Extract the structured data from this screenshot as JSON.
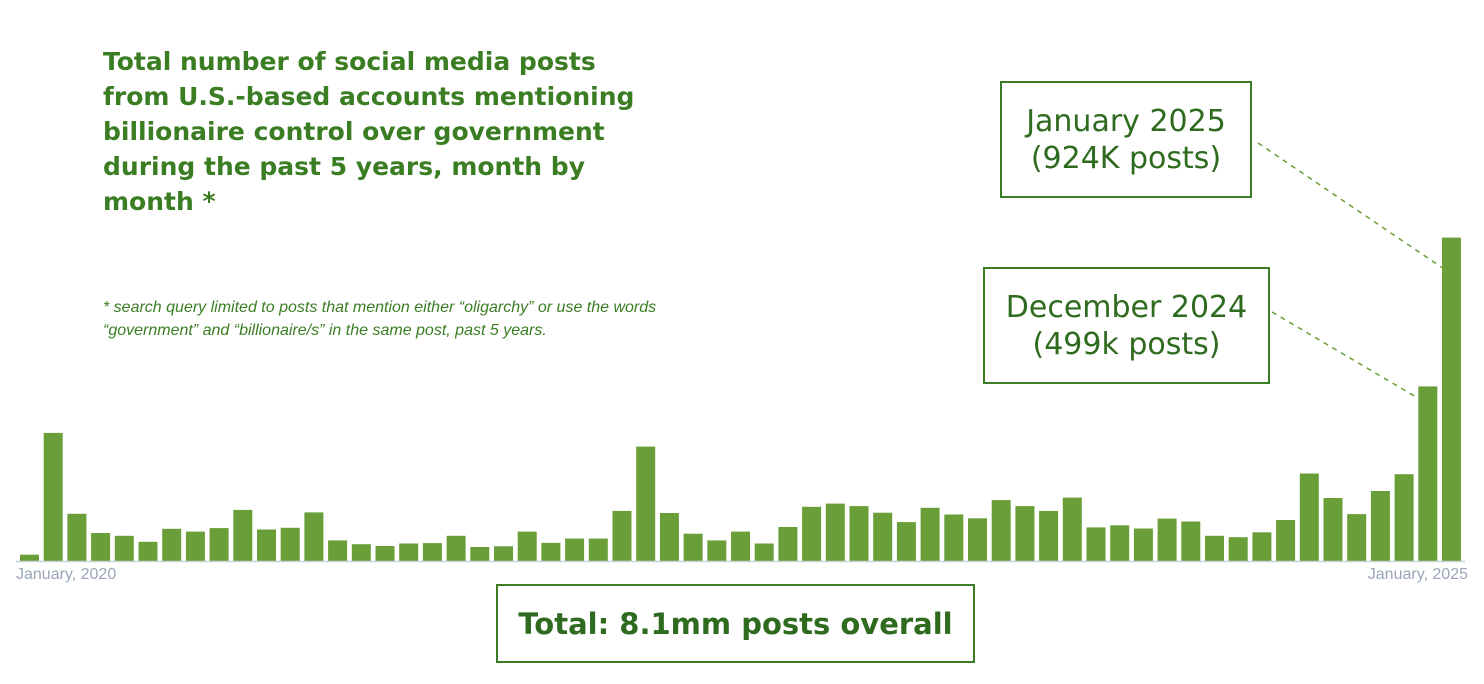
{
  "title": "Total number of social media posts from U.S.-based accounts mentioning billionaire control over government during the past 5 years, month by month *",
  "footnote": "* search query limited to posts that mention either “oligarchy” or use the words  “government” and “billionaire/s” in the same post, past 5 years.",
  "callouts": {
    "jan2025": {
      "line1": "January 2025",
      "line2": "(924K posts)"
    },
    "dec2024": {
      "line1": "December 2024",
      "line2": "(499k posts)"
    }
  },
  "total_label": "Total: 8.1mm posts overall",
  "colors": {
    "bar": "#6a9e38",
    "text": "#3a7d22",
    "axis_label": "#9aa6b8",
    "leader": "#6a9e38"
  },
  "chart_data": {
    "type": "bar",
    "title": "Total number of social media posts from U.S.-based accounts mentioning billionaire control over government during the past 5 years, month by month *",
    "xlabel": "",
    "ylabel": "",
    "units": "posts",
    "x_tick_labels": [
      "January, 2020",
      "January, 2025"
    ],
    "categories": [
      "2020-01",
      "2020-02",
      "2020-03",
      "2020-04",
      "2020-05",
      "2020-06",
      "2020-07",
      "2020-08",
      "2020-09",
      "2020-10",
      "2020-11",
      "2020-12",
      "2021-01",
      "2021-02",
      "2021-03",
      "2021-04",
      "2021-05",
      "2021-06",
      "2021-07",
      "2021-08",
      "2021-09",
      "2021-10",
      "2021-11",
      "2021-12",
      "2022-01",
      "2022-02",
      "2022-03",
      "2022-04",
      "2022-05",
      "2022-06",
      "2022-07",
      "2022-08",
      "2022-09",
      "2022-10",
      "2022-11",
      "2022-12",
      "2023-01",
      "2023-02",
      "2023-03",
      "2023-04",
      "2023-05",
      "2023-06",
      "2023-07",
      "2023-08",
      "2023-09",
      "2023-10",
      "2023-11",
      "2023-12",
      "2024-01",
      "2024-02",
      "2024-03",
      "2024-04",
      "2024-05",
      "2024-06",
      "2024-07",
      "2024-08",
      "2024-09",
      "2024-10",
      "2024-11",
      "2024-12",
      "2025-01"
    ],
    "values": [
      18000,
      366000,
      135000,
      80000,
      72000,
      55000,
      92000,
      84000,
      94000,
      146000,
      90000,
      95000,
      139000,
      59000,
      48000,
      43000,
      50000,
      51000,
      72000,
      40000,
      42000,
      84000,
      52000,
      64000,
      64000,
      143000,
      327000,
      137000,
      78000,
      59000,
      84000,
      50000,
      97000,
      155000,
      164000,
      157000,
      138000,
      111000,
      152000,
      133000,
      122000,
      174000,
      157000,
      143000,
      181000,
      96000,
      102000,
      93000,
      121000,
      113000,
      72000,
      68000,
      82000,
      117000,
      250000,
      180000,
      134000,
      200000,
      248000,
      499000,
      924000
    ],
    "ylim": [
      0,
      1000000
    ],
    "grid": false,
    "legend": "none"
  }
}
